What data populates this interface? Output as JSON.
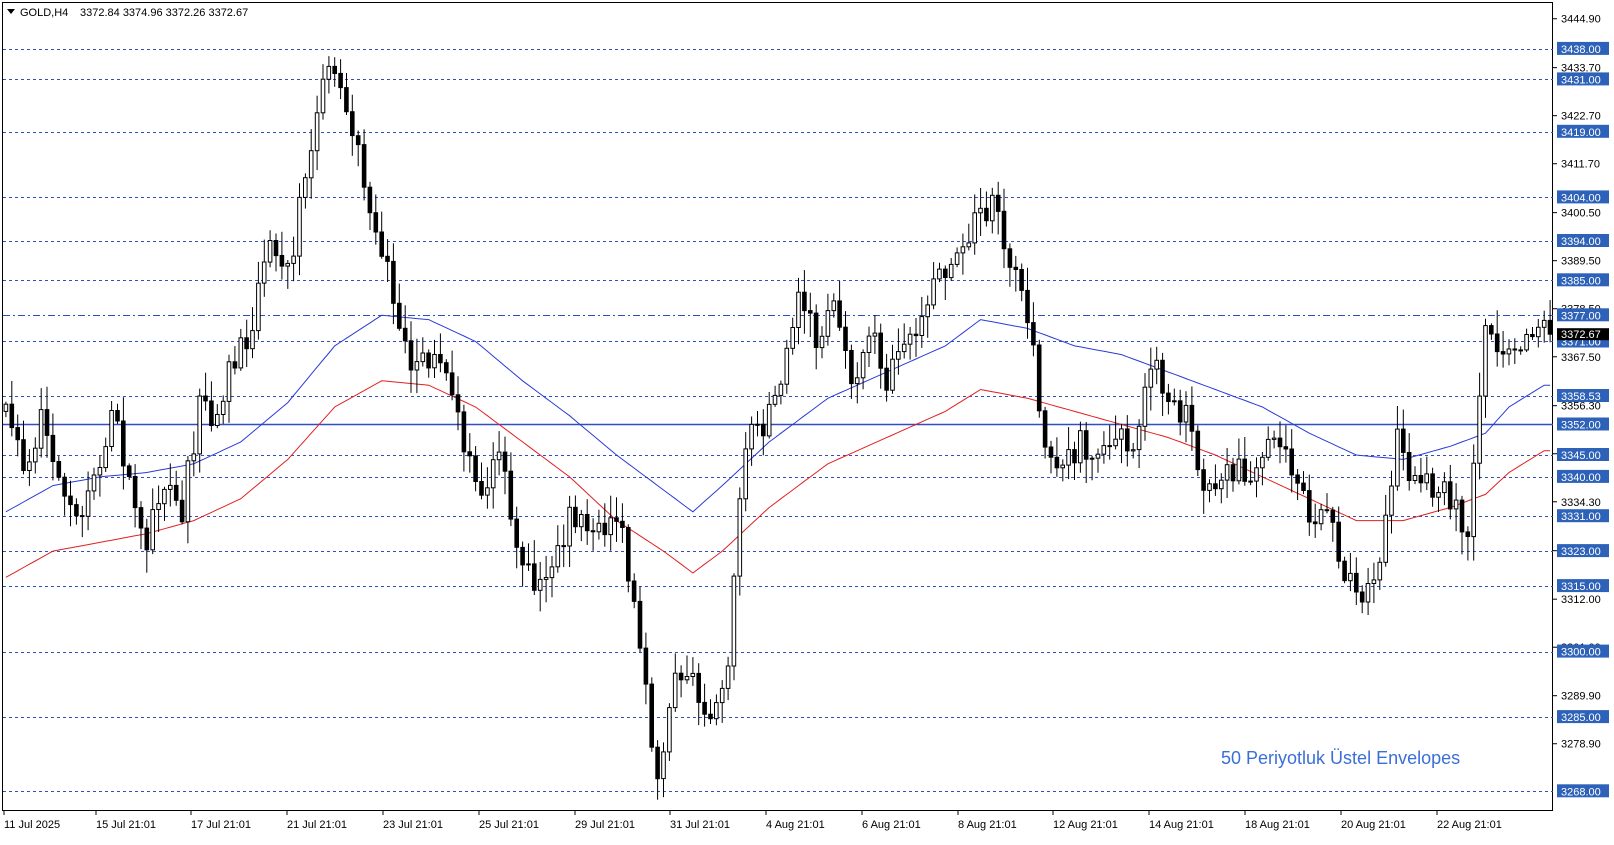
{
  "header": {
    "symbol": "GOLD,H4",
    "ohlc": "3372.84 3374.96 3372.26 3372.67"
  },
  "annotation": "50 Periyotluk Üstel Envelopes",
  "colors": {
    "candle": "#000000",
    "upper_envelope": "#2a3bd6",
    "lower_envelope": "#e02020",
    "level_line": "#2d4fc0",
    "level_label_bg": "#2d62b8",
    "current_price_bg": "#000000",
    "annotation": "#3a6fd8"
  },
  "chart_data": {
    "type": "candlestick",
    "ylim": [
      3263.5,
      3448.5
    ],
    "y_ticks": [
      "3444.90",
      "3433.70",
      "3422.70",
      "3411.70",
      "3400.50",
      "3389.50",
      "3378.50",
      "3367.50",
      "3356.30",
      "3345.30",
      "3334.30",
      "3323.10",
      "3312.00",
      "3301.00",
      "3289.90",
      "3278.90"
    ],
    "levels": [
      3438.0,
      3431.0,
      3419.0,
      3404.0,
      3394.0,
      3385.0,
      3377.0,
      3371.0,
      3358.53,
      3352.0,
      3345.0,
      3340.0,
      3331.0,
      3323.0,
      3315.0,
      3300.0,
      3285.0,
      3268.0
    ],
    "level_labels": [
      "3438.00",
      "3431.00",
      "3419.00",
      "3404.00",
      "3394.00",
      "3385.00",
      "3377.00",
      "3371.00",
      "3358.53",
      "3352.00",
      "3345.00",
      "3340.00",
      "3331.00",
      "3323.00",
      "3315.00",
      "3300.00",
      "3285.00",
      "3268.00"
    ],
    "solid_level": 3352.0,
    "dashdot_level": 3377.0,
    "current_price": 3372.67,
    "current_price_label": "3372.67",
    "x_labels": [
      "11 Jul 2025",
      "15 Jul 21:01",
      "17 Jul 21:01",
      "21 Jul 21:01",
      "23 Jul 21:01",
      "25 Jul 21:01",
      "29 Jul 21:01",
      "31 Jul 21:01",
      "4 Aug 21:01",
      "6 Aug 21:01",
      "8 Aug 21:01",
      "12 Aug 21:01",
      "14 Aug 21:01",
      "18 Aug 21:01",
      "20 Aug 21:01",
      "22 Aug 21:01"
    ],
    "close_anchors": [
      [
        0,
        3357
      ],
      [
        3,
        3342
      ],
      [
        6,
        3352
      ],
      [
        9,
        3341
      ],
      [
        12,
        3328
      ],
      [
        15,
        3340
      ],
      [
        18,
        3354
      ],
      [
        21,
        3341
      ],
      [
        24,
        3326
      ],
      [
        27,
        3340
      ],
      [
        30,
        3333
      ],
      [
        33,
        3356
      ],
      [
        36,
        3353
      ],
      [
        39,
        3368
      ],
      [
        42,
        3374
      ],
      [
        45,
        3395
      ],
      [
        48,
        3387
      ],
      [
        51,
        3408
      ],
      [
        54,
        3434
      ],
      [
        57,
        3432
      ],
      [
        60,
        3416
      ],
      [
        63,
        3396
      ],
      [
        66,
        3381
      ],
      [
        69,
        3366
      ],
      [
        72,
        3367
      ],
      [
        75,
        3364
      ],
      [
        78,
        3346
      ],
      [
        81,
        3338
      ],
      [
        84,
        3346
      ],
      [
        87,
        3326
      ],
      [
        90,
        3312
      ],
      [
        93,
        3322
      ],
      [
        96,
        3330
      ],
      [
        99,
        3330
      ],
      [
        102,
        3326
      ],
      [
        105,
        3330
      ],
      [
        108,
        3298
      ],
      [
        111,
        3272
      ],
      [
        114,
        3296
      ],
      [
        117,
        3295
      ],
      [
        120,
        3285
      ],
      [
        123,
        3300
      ],
      [
        126,
        3349
      ],
      [
        129,
        3352
      ],
      [
        132,
        3364
      ],
      [
        135,
        3383
      ],
      [
        138,
        3372
      ],
      [
        141,
        3380
      ],
      [
        144,
        3362
      ],
      [
        147,
        3374
      ],
      [
        150,
        3362
      ],
      [
        153,
        3367
      ],
      [
        156,
        3377
      ],
      [
        159,
        3385
      ],
      [
        162,
        3390
      ],
      [
        165,
        3397
      ],
      [
        168,
        3404
      ],
      [
        171,
        3390
      ],
      [
        174,
        3377
      ],
      [
        177,
        3348
      ],
      [
        180,
        3342
      ],
      [
        183,
        3349
      ],
      [
        186,
        3342
      ],
      [
        189,
        3350
      ],
      [
        192,
        3346
      ],
      [
        195,
        3365
      ],
      [
        198,
        3360
      ],
      [
        201,
        3354
      ],
      [
        204,
        3338
      ],
      [
        207,
        3340
      ],
      [
        210,
        3341
      ],
      [
        213,
        3340
      ],
      [
        216,
        3350
      ],
      [
        219,
        3343
      ],
      [
        222,
        3332
      ],
      [
        225,
        3334
      ],
      [
        228,
        3317
      ],
      [
        231,
        3313
      ],
      [
        234,
        3322
      ],
      [
        237,
        3348
      ],
      [
        240,
        3338
      ],
      [
        243,
        3338
      ],
      [
        246,
        3335
      ],
      [
        249,
        3326
      ],
      [
        252,
        3372
      ],
      [
        255,
        3366
      ],
      [
        258,
        3370
      ],
      [
        261,
        3374
      ],
      [
        263,
        3372.67
      ]
    ],
    "upper_envelope_anchors": [
      [
        0,
        3332
      ],
      [
        8,
        3338
      ],
      [
        16,
        3340
      ],
      [
        24,
        3341
      ],
      [
        32,
        3343
      ],
      [
        40,
        3348
      ],
      [
        48,
        3357
      ],
      [
        56,
        3370
      ],
      [
        64,
        3377
      ],
      [
        72,
        3376
      ],
      [
        80,
        3371
      ],
      [
        88,
        3362
      ],
      [
        96,
        3354
      ],
      [
        104,
        3345
      ],
      [
        112,
        3337
      ],
      [
        117,
        3332
      ],
      [
        122,
        3338
      ],
      [
        130,
        3348
      ],
      [
        140,
        3358
      ],
      [
        150,
        3364
      ],
      [
        160,
        3370
      ],
      [
        166,
        3376
      ],
      [
        174,
        3374
      ],
      [
        182,
        3370
      ],
      [
        190,
        3368
      ],
      [
        198,
        3364
      ],
      [
        206,
        3360
      ],
      [
        214,
        3356
      ],
      [
        222,
        3350
      ],
      [
        230,
        3345
      ],
      [
        238,
        3344
      ],
      [
        246,
        3347
      ],
      [
        252,
        3350
      ],
      [
        256,
        3356
      ],
      [
        262,
        3361
      ]
    ],
    "lower_envelope_anchors": [
      [
        0,
        3317
      ],
      [
        8,
        3323
      ],
      [
        16,
        3325
      ],
      [
        24,
        3327
      ],
      [
        32,
        3330
      ],
      [
        40,
        3335
      ],
      [
        48,
        3344
      ],
      [
        56,
        3356
      ],
      [
        64,
        3362
      ],
      [
        72,
        3361
      ],
      [
        80,
        3356
      ],
      [
        88,
        3348
      ],
      [
        96,
        3340
      ],
      [
        104,
        3330
      ],
      [
        112,
        3323
      ],
      [
        117,
        3318
      ],
      [
        122,
        3323
      ],
      [
        130,
        3333
      ],
      [
        140,
        3343
      ],
      [
        150,
        3349
      ],
      [
        160,
        3355
      ],
      [
        166,
        3360
      ],
      [
        174,
        3358
      ],
      [
        182,
        3355
      ],
      [
        190,
        3352
      ],
      [
        198,
        3349
      ],
      [
        206,
        3345
      ],
      [
        214,
        3340
      ],
      [
        222,
        3335
      ],
      [
        230,
        3330
      ],
      [
        238,
        3330
      ],
      [
        246,
        3333
      ],
      [
        252,
        3336
      ],
      [
        256,
        3341
      ],
      [
        262,
        3346
      ]
    ],
    "candle_count": 264,
    "seed": 20250711
  }
}
